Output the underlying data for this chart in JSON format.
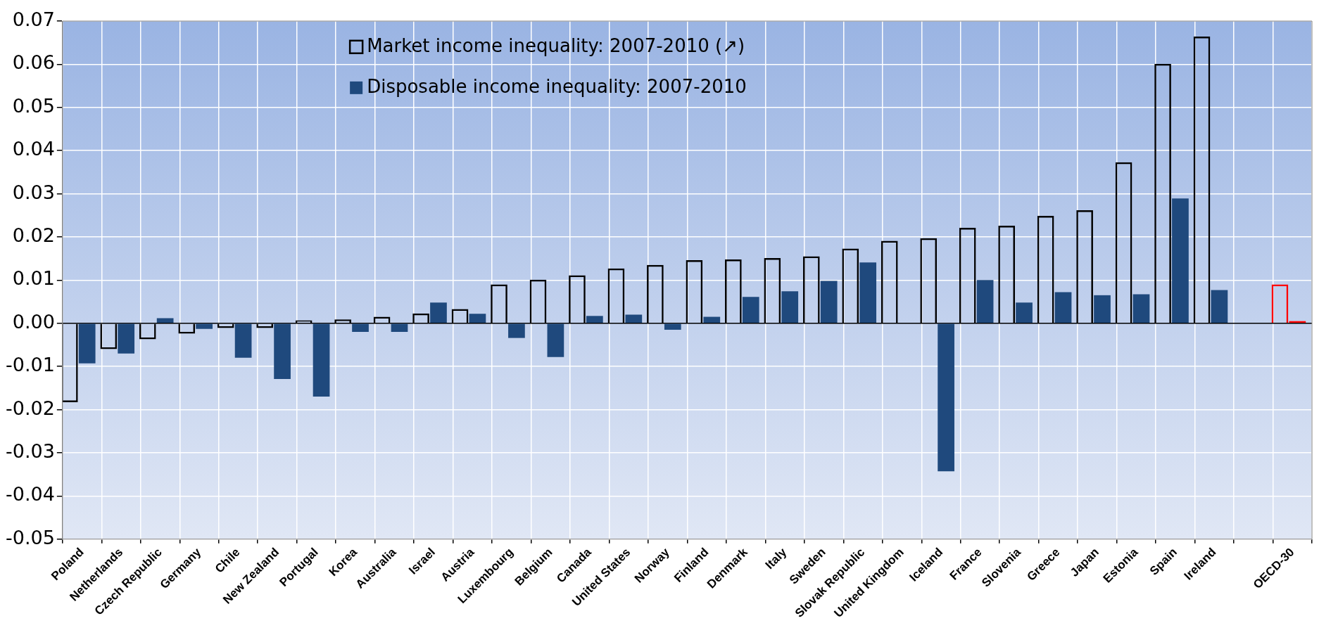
{
  "chart_data": {
    "type": "bar",
    "categories": [
      "Poland",
      "Netherlands",
      "Czech Republic",
      "Germany",
      "Chile",
      "New Zealand",
      "Portugal",
      "Korea",
      "Australia",
      "Israel",
      "Austria",
      "Luxembourg",
      "Belgium",
      "Canada",
      "United States",
      "Norway",
      "Finland",
      "Denmark",
      "Italy",
      "Sweden",
      "Slovak Republic",
      "United Kingdom",
      "Iceland",
      "France",
      "Slovenia",
      "Greece",
      "Japan",
      "Estonia",
      "Spain",
      "Ireland",
      null,
      "OECD-30"
    ],
    "series": [
      {
        "name": "Market income inequality: 2007-2010 (↗)",
        "color": "#000000",
        "colors": [
          "#000000",
          "#000000",
          "#000000",
          "#000000",
          "#000000",
          "#000000",
          "#000000",
          "#000000",
          "#000000",
          "#000000",
          "#000000",
          "#000000",
          "#000000",
          "#000000",
          "#000000",
          "#000000",
          "#000000",
          "#000000",
          "#000000",
          "#000000",
          "#000000",
          "#000000",
          "#000000",
          "#000000",
          "#000000",
          "#000000",
          "#000000",
          "#000000",
          "#000000",
          "#000000",
          "#000000",
          "#ff0000"
        ],
        "values": [
          -0.0183,
          -0.006,
          -0.0037,
          -0.0024,
          -0.0011,
          -0.0011,
          0.0007,
          0.0009,
          0.0015,
          0.0023,
          0.0033,
          0.009,
          0.0101,
          0.0111,
          0.0127,
          0.0135,
          0.0146,
          0.0148,
          0.0151,
          0.0155,
          0.0173,
          0.0191,
          0.0197,
          0.0221,
          0.0226,
          0.0249,
          0.0262,
          0.0373,
          0.0601,
          0.0664,
          null,
          0.009
        ]
      },
      {
        "name": "Disposable income inequality: 2007-2010",
        "color": "#1f497d",
        "colors": [
          "#1f497d",
          "#1f497d",
          "#1f497d",
          "#1f497d",
          "#1f497d",
          "#1f497d",
          "#1f497d",
          "#1f497d",
          "#1f497d",
          "#1f497d",
          "#1f497d",
          "#1f497d",
          "#1f497d",
          "#1f497d",
          "#1f497d",
          "#1f497d",
          "#1f497d",
          "#1f497d",
          "#1f497d",
          "#1f497d",
          "#1f497d",
          "#1f497d",
          "#1f497d",
          "#1f497d",
          "#1f497d",
          "#1f497d",
          "#1f497d",
          "#1f497d",
          "#1f497d",
          "#1f497d",
          "#1f497d",
          "#ff0000"
        ],
        "values": [
          -0.0093,
          -0.007,
          0.0012,
          -0.0013,
          -0.008,
          -0.0129,
          -0.017,
          -0.002,
          -0.002,
          0.0048,
          0.0022,
          -0.0034,
          -0.0078,
          0.0017,
          0.002,
          -0.0015,
          0.0015,
          0.0061,
          0.0074,
          0.0098,
          0.0141,
          null,
          -0.0343,
          0.01,
          0.0048,
          0.0072,
          0.0065,
          0.0067,
          0.0289,
          0.0077,
          null,
          0.0005
        ]
      }
    ],
    "ylim": [
      -0.05,
      0.07
    ],
    "yticks": [
      0.07,
      0.06,
      0.05,
      0.04,
      0.03,
      0.02,
      0.01,
      {
        "value": 0,
        "label": "0.00"
      },
      -0.01,
      -0.02,
      -0.03,
      -0.04,
      -0.05
    ],
    "grid": true,
    "legend": "top"
  }
}
